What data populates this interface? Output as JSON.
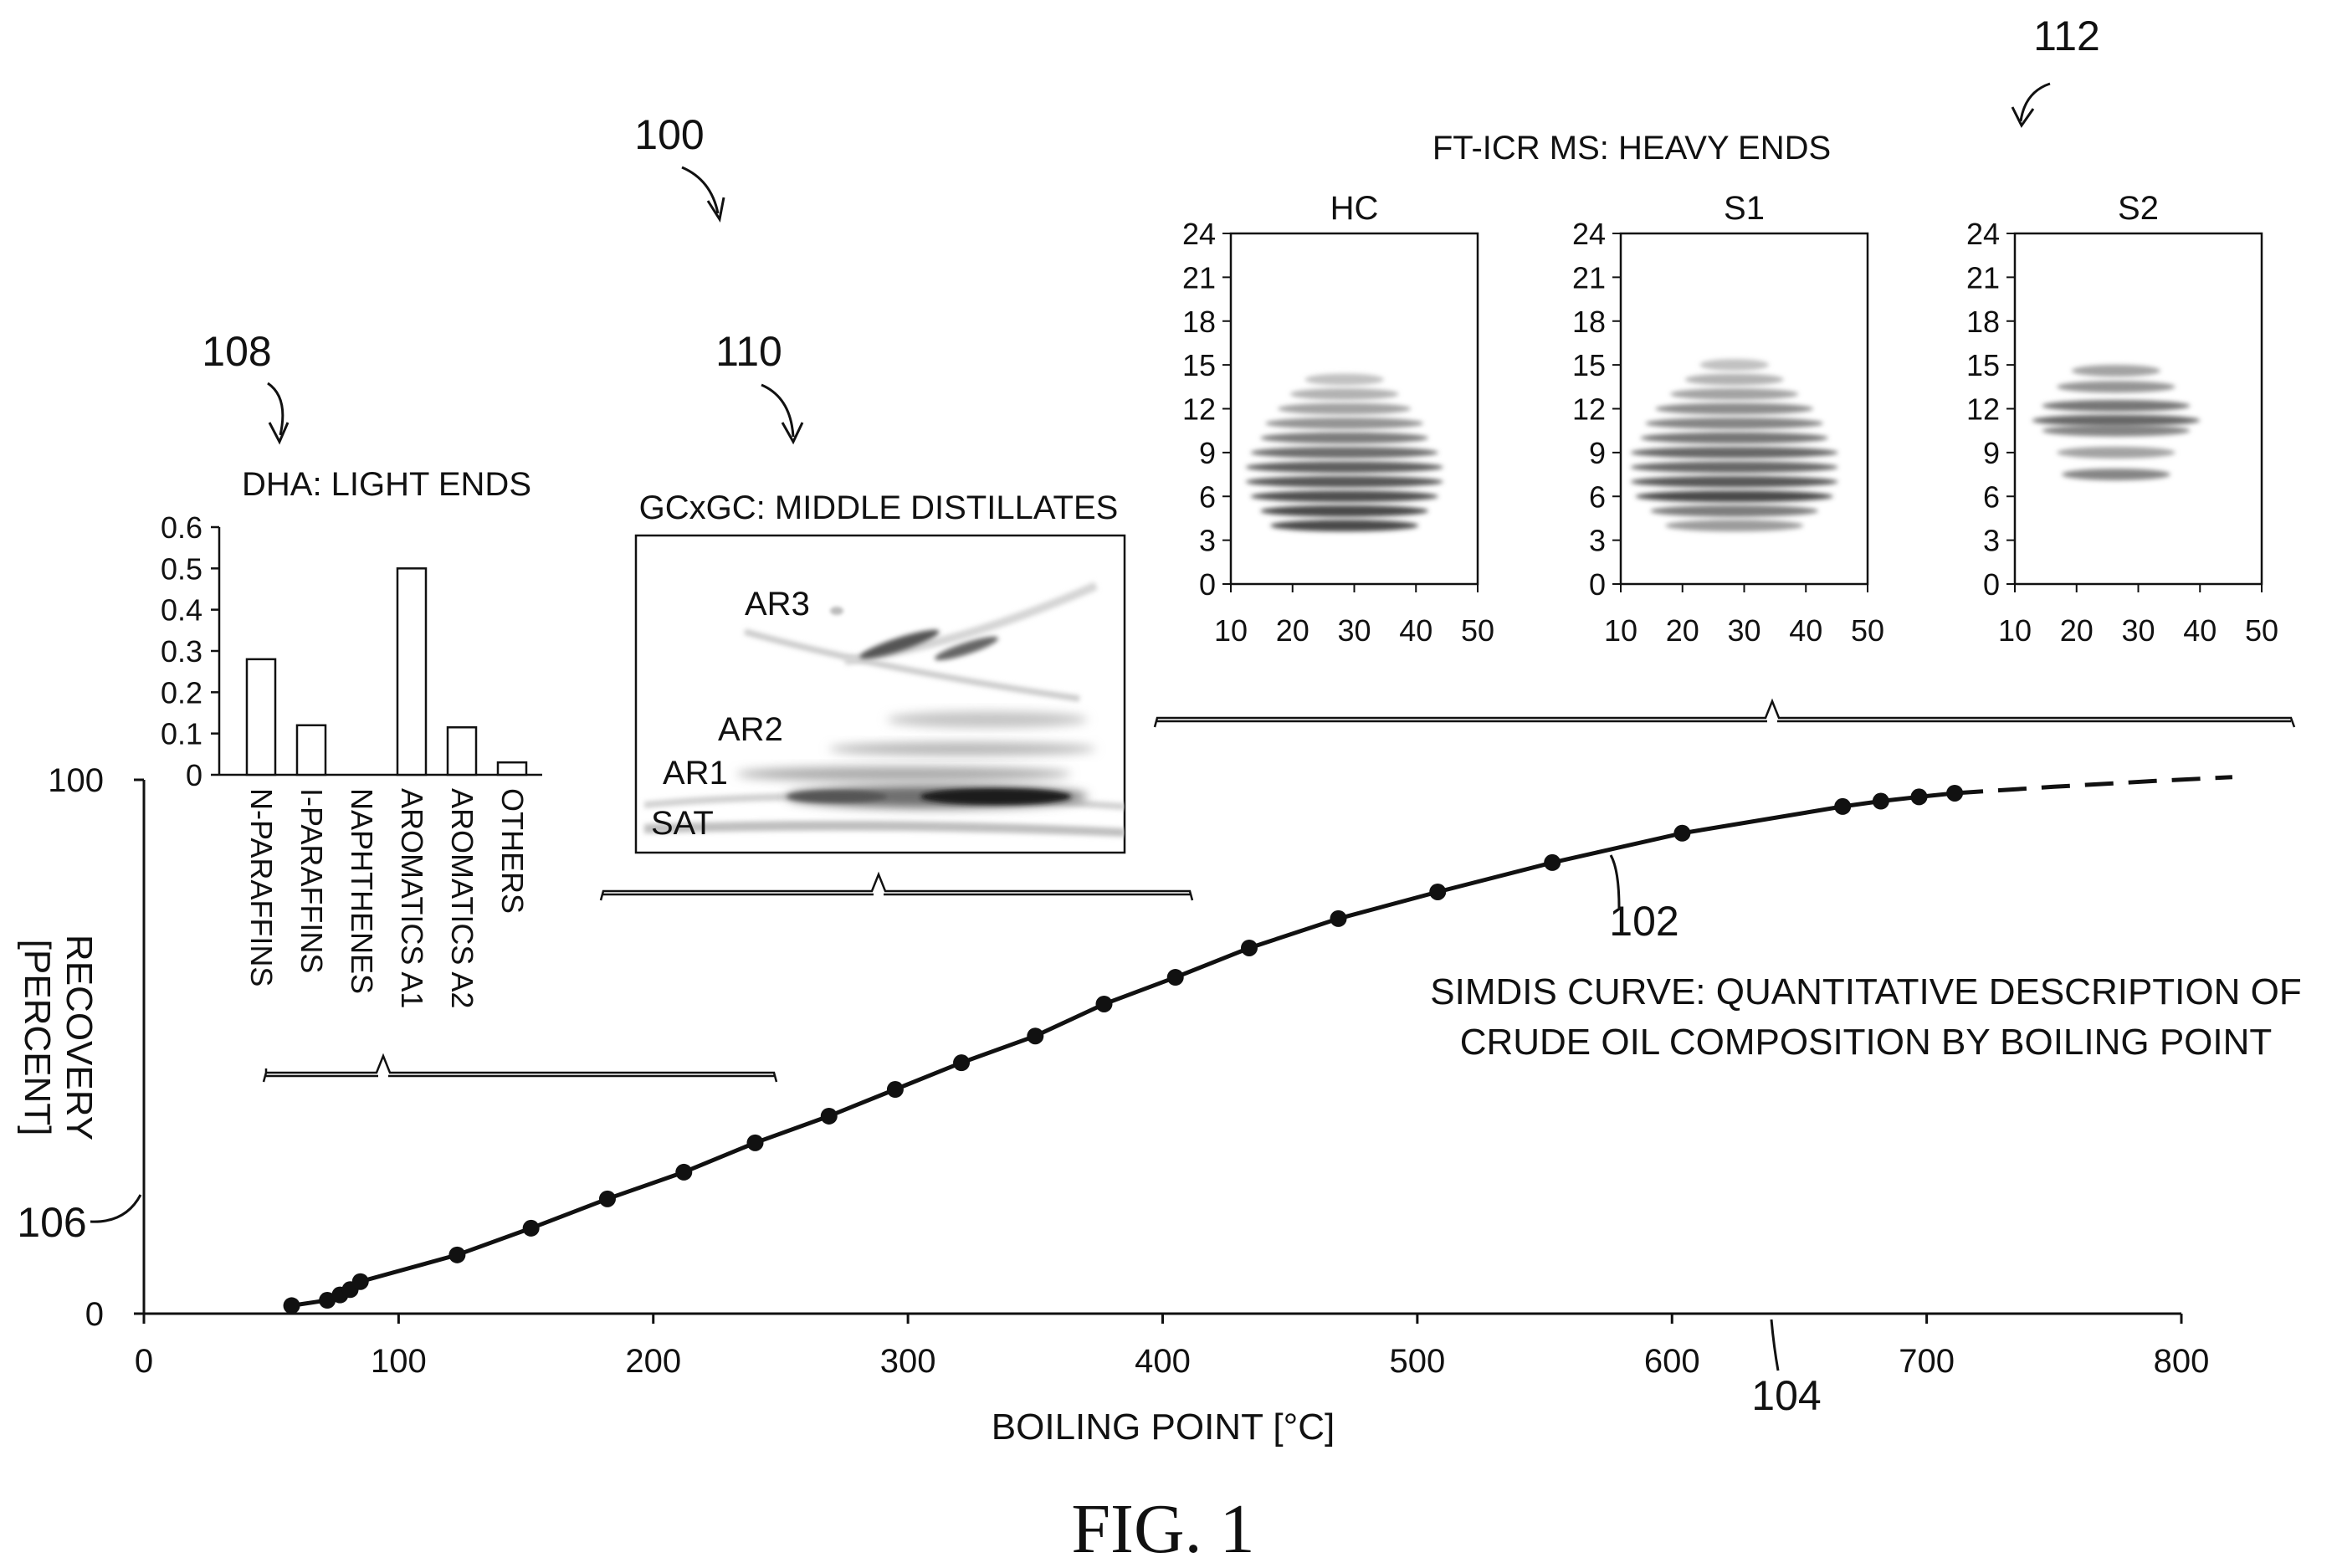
{
  "figure": {
    "caption": "FIG. 1",
    "ref": "100"
  },
  "refs": {
    "simdis": "102",
    "x_axis": "104",
    "y_axis": "106",
    "dha": "108",
    "gcxgc": "110",
    "fticr": "112"
  },
  "chart_data": [
    {
      "id": "simdis",
      "type": "line",
      "title": "SIMDIS CURVE: QUANTITATIVE DESCRIPTION OF CRUDE OIL COMPOSITION BY BOILING POINT",
      "title_lines": [
        "SIMDIS CURVE: QUANTITATIVE DESCRIPTION OF",
        "CRUDE OIL COMPOSITION BY BOILING POINT"
      ],
      "xlabel": "BOILING POINT [°C]",
      "ylabel_lines": [
        "RECOVERY",
        "[PERCENT]"
      ],
      "xlim": [
        0,
        800
      ],
      "ylim": [
        0,
        100
      ],
      "xticks": [
        0,
        100,
        200,
        300,
        400,
        500,
        600,
        700,
        800
      ],
      "yticks": [
        0,
        100
      ],
      "series": [
        {
          "x": [
            58,
            72,
            77,
            81,
            85,
            123,
            152,
            182,
            212,
            240,
            269,
            295,
            321,
            350,
            377,
            405,
            434,
            469,
            508,
            553,
            604,
            667,
            682,
            697,
            711
          ],
          "y": [
            1.5,
            2.5,
            3.5,
            4.5,
            6,
            11,
            16,
            21.5,
            26.5,
            32,
            37,
            42,
            47,
            52,
            58,
            63,
            68.5,
            74,
            79,
            84.5,
            90,
            95,
            96,
            96.8,
            97.5
          ]
        }
      ],
      "extrapolation": {
        "x": [
          711,
          750,
          790,
          820
        ],
        "y": [
          97.5,
          98.7,
          99.8,
          100.5
        ]
      }
    },
    {
      "id": "dha",
      "type": "bar",
      "title": "DHA: LIGHT ENDS",
      "categories": [
        "N-PARAFFINS",
        "I-PARAFFINS",
        "NAPHTHENES",
        "AROMATICS A1",
        "AROMATICS A2",
        "OTHERS"
      ],
      "values": [
        0.28,
        0.12,
        0,
        0.5,
        0.115,
        0.03
      ],
      "ylim": [
        0,
        0.6
      ],
      "yticks": [
        "0",
        "0.1",
        "0.2",
        "0.3",
        "0.4",
        "0.5",
        "0.6"
      ]
    },
    {
      "id": "gcxgc",
      "type": "heatmap",
      "title": "GCxGC: MIDDLE DISTILLATES",
      "annotations": [
        "AR3",
        "AR2",
        "AR1",
        "SAT"
      ]
    },
    {
      "id": "fticr",
      "type": "heatmap",
      "title": "FT-ICR MS: HEAVY ENDS",
      "panels": [
        "HC",
        "S1",
        "S2"
      ],
      "xlim": [
        10,
        50
      ],
      "ylim": [
        0,
        24
      ],
      "xticks": [
        "10",
        "20",
        "30",
        "40",
        "50"
      ],
      "yticks": [
        "0",
        "3",
        "6",
        "9",
        "12",
        "15",
        "18",
        "21",
        "24"
      ]
    }
  ]
}
